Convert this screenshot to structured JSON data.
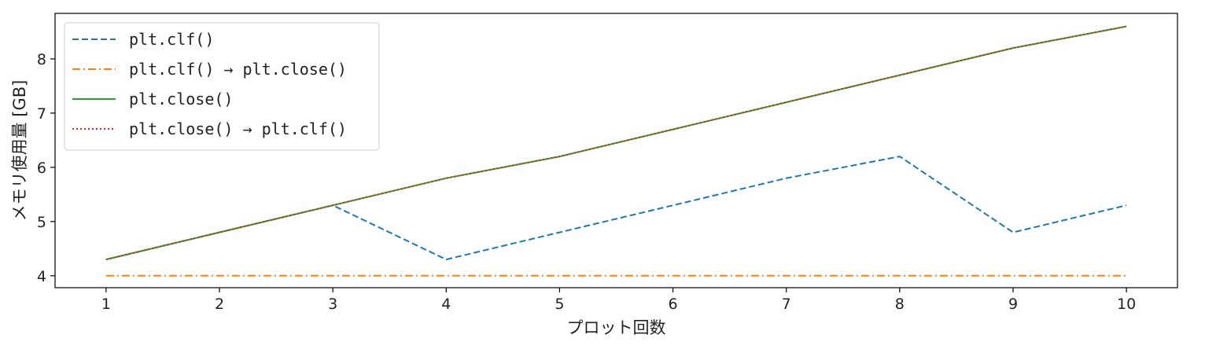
{
  "chart_data": {
    "type": "line",
    "xlabel": "プロット回数",
    "ylabel": "メモリ使用量 [GB]",
    "x": [
      1,
      2,
      3,
      4,
      5,
      6,
      7,
      8,
      9,
      10
    ],
    "xticks": [
      "1",
      "2",
      "3",
      "4",
      "5",
      "6",
      "7",
      "8",
      "9",
      "10"
    ],
    "yticks": [
      "4",
      "5",
      "6",
      "7",
      "8"
    ],
    "xlim": [
      0.55,
      10.45
    ],
    "ylim": [
      3.78,
      8.84
    ],
    "grid": false,
    "legend_position": "top-left",
    "series": [
      {
        "name": "plt.clf()",
        "color": "#1f77b4",
        "style": "dashed",
        "values": [
          4.3,
          4.8,
          5.3,
          4.3,
          4.8,
          5.3,
          5.8,
          6.2,
          4.8,
          5.3
        ]
      },
      {
        "name": "plt.clf() → plt.close()",
        "color": "#ff7f0e",
        "style": "dashdot",
        "values": [
          4.0,
          4.0,
          4.0,
          4.0,
          4.0,
          4.0,
          4.0,
          4.0,
          4.0,
          4.0
        ]
      },
      {
        "name": "plt.close()",
        "color": "#2ca02c",
        "style": "solid",
        "values": [
          4.3,
          4.8,
          5.3,
          5.8,
          6.2,
          6.7,
          7.2,
          7.7,
          8.2,
          8.6
        ]
      },
      {
        "name": "plt.close() → plt.clf()",
        "color": "#d62728",
        "style": "dotted",
        "values": [
          4.3,
          4.8,
          5.3,
          5.8,
          6.2,
          6.7,
          7.2,
          7.7,
          8.2,
          8.6
        ]
      }
    ]
  }
}
